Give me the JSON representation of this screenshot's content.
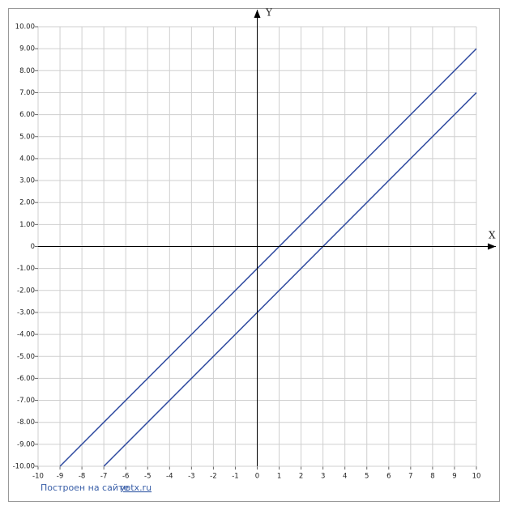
{
  "chart_data": {
    "type": "line",
    "x_label": "X",
    "y_label": "Y",
    "x": [
      -9,
      -7,
      10
    ],
    "series": [
      {
        "color": "#2f4aa0",
        "values": [
          -10,
          -8,
          9
        ]
      },
      {
        "color": "#2f4aa0",
        "values": [
          null,
          -10,
          7
        ]
      }
    ],
    "xlim": [
      -10,
      10
    ],
    "ylim": [
      -10,
      10
    ],
    "xticks": [
      -10,
      -9,
      -8,
      -7,
      -6,
      -5,
      -4,
      -3,
      -2,
      -1,
      0,
      1,
      2,
      3,
      4,
      5,
      6,
      7,
      8,
      9,
      10
    ],
    "yticks": [
      {
        "value": 10,
        "label": "10.00"
      },
      {
        "value": 9,
        "label": "9.00"
      },
      {
        "value": 8,
        "label": "8.00"
      },
      {
        "value": 7,
        "label": "7.00"
      },
      {
        "value": 6,
        "label": "6.00"
      },
      {
        "value": 5,
        "label": "5.00"
      },
      {
        "value": 4,
        "label": "4.00"
      },
      {
        "value": 3,
        "label": "3.00"
      },
      {
        "value": 2,
        "label": "2.00"
      },
      {
        "value": 1,
        "label": "1.00"
      },
      0,
      {
        "value": -1,
        "label": "-1.00"
      },
      {
        "value": -2,
        "label": "-2.00"
      },
      {
        "value": -3,
        "label": "-3.00"
      },
      {
        "value": -4,
        "label": "-4.00"
      },
      {
        "value": -5,
        "label": "-5.00"
      },
      {
        "value": -6,
        "label": "-6.00"
      },
      {
        "value": -7,
        "label": "-7.00"
      },
      {
        "value": -8,
        "label": "-8.00"
      },
      {
        "value": -9,
        "label": "-9.00"
      },
      {
        "value": -10,
        "label": "-10.00"
      }
    ],
    "grid": true,
    "source_text": "Построен на сайте",
    "source_link": "yotx.ru"
  }
}
